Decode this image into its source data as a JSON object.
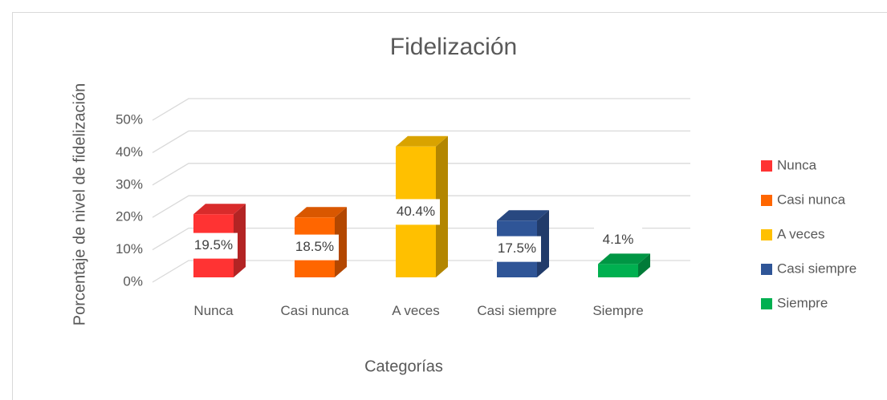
{
  "chart_data": {
    "type": "bar3d",
    "title": "Fidelización",
    "x_label": "Categorías",
    "y_label": "Porcentaje de nivel de fidelización",
    "categories": [
      "Nunca",
      "Casi nunca",
      "A veces",
      "Casi siempre",
      "Siempre"
    ],
    "values": [
      19.5,
      18.5,
      40.4,
      17.5,
      4.1
    ],
    "value_labels": [
      "19.5%",
      "18.5%",
      "40.4%",
      "17.5%",
      "4.1%"
    ],
    "colors": [
      "#ff3333",
      "#ff6600",
      "#ffc000",
      "#2f5597",
      "#00b050"
    ],
    "ylim": [
      0,
      50
    ],
    "yticks": [
      {
        "value": 0,
        "label": "0%"
      },
      {
        "value": 10,
        "label": "10%"
      },
      {
        "value": 20,
        "label": "20%"
      },
      {
        "value": 30,
        "label": "30%"
      },
      {
        "value": 40,
        "label": "40%"
      },
      {
        "value": 50,
        "label": "50%"
      }
    ],
    "grid": true,
    "legend": "right"
  }
}
